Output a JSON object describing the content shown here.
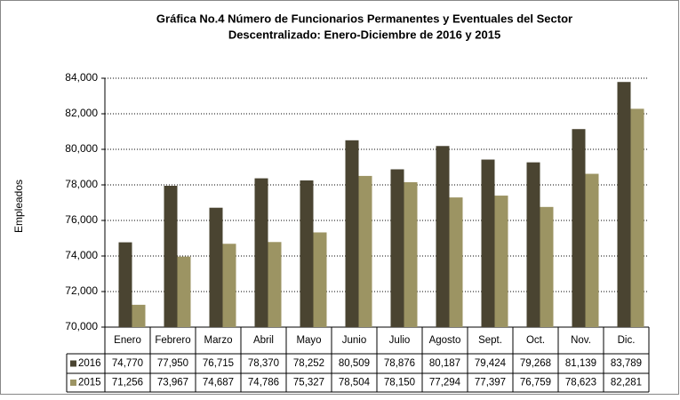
{
  "chart_data": {
    "type": "bar",
    "title": [
      "Gráfica No.4  Número de Funcionarios Permanentes y Eventuales del Sector",
      "Descentralizado: Enero-Diciembre de 2016 y 2015"
    ],
    "y_label": "Empleados",
    "categories": [
      "Enero",
      "Febrero",
      "Marzo",
      "Abril",
      "Mayo",
      "Junio",
      "Julio",
      "Agosto",
      "Sept.",
      "Oct.",
      "Nov.",
      "Dic."
    ],
    "series": [
      {
        "name": "2016",
        "color": "#4a4431",
        "values": [
          74770,
          77950,
          76715,
          78370,
          78252,
          80509,
          78876,
          80187,
          79424,
          79268,
          81139,
          83789
        ],
        "value_labels": [
          "74,770",
          "77,950",
          "76,715",
          "78,370",
          "78,252",
          "80,509",
          "78,876",
          "80,187",
          "79,424",
          "79,268",
          "81,139",
          "83,789"
        ]
      },
      {
        "name": "2015",
        "color": "#9c9463",
        "values": [
          71256,
          73967,
          74687,
          74786,
          75327,
          78504,
          78150,
          77294,
          77397,
          76759,
          78623,
          82281
        ],
        "value_labels": [
          "71,256",
          "73,967",
          "74,687",
          "74,786",
          "75,327",
          "78,504",
          "78,150",
          "77,294",
          "77,397",
          "76,759",
          "78,623",
          "82,281"
        ]
      }
    ],
    "ylim": [
      70000,
      84000
    ],
    "yticks": [
      {
        "value": 70000,
        "label": "70,000"
      },
      {
        "value": 72000,
        "label": "72,000"
      },
      {
        "value": 74000,
        "label": "74,000"
      },
      {
        "value": 76000,
        "label": "76,000"
      },
      {
        "value": 78000,
        "label": "78,000"
      },
      {
        "value": 80000,
        "label": "80,000"
      },
      {
        "value": 82000,
        "label": "82,000"
      },
      {
        "value": 84000,
        "label": "84,000"
      }
    ],
    "grid": true
  }
}
